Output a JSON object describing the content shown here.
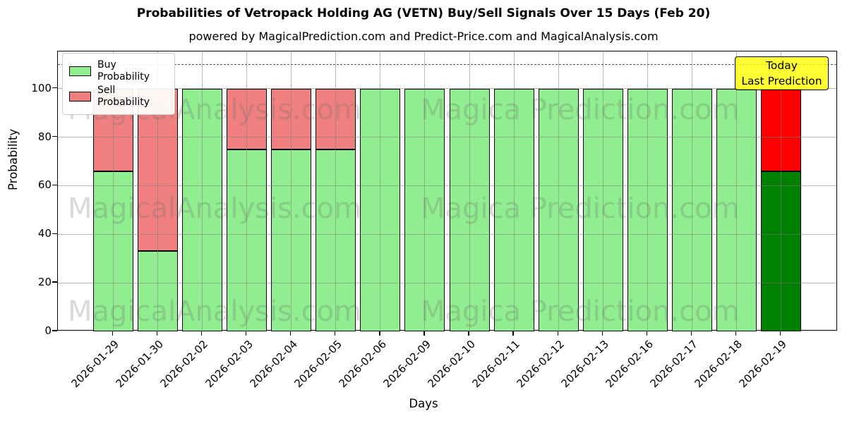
{
  "header": {
    "title": "Probabilities of Vetropack Holding AG (VETN) Buy/Sell Signals Over 15 Days (Feb 20)",
    "subtitle": "powered by MagicalPrediction.com and Predict-Price.com and MagicalAnalysis.com"
  },
  "legend": {
    "items": [
      {
        "label": "Buy Probability",
        "color": "#90EE90"
      },
      {
        "label": "Sell Probability",
        "color": "#F08080"
      }
    ]
  },
  "annotation": {
    "line1": "Today",
    "line2": "Last Prediction"
  },
  "watermarks": {
    "left": "MagicalAnalysis.com",
    "right": "Magica Prediction.com"
  },
  "chart_data": {
    "type": "bar",
    "stacked": true,
    "title": "Probabilities of Vetropack Holding AG (VETN) Buy/Sell Signals Over 15 Days (Feb 20)",
    "xlabel": "Days",
    "ylabel": "Probability",
    "categories": [
      "2026-01-29",
      "2026-01-30",
      "2026-02-02",
      "2026-02-03",
      "2026-02-04",
      "2026-02-05",
      "2026-02-06",
      "2026-02-09",
      "2026-02-10",
      "2026-02-11",
      "2026-02-12",
      "2026-02-13",
      "2026-02-16",
      "2026-02-17",
      "2026-02-18",
      "2026-02-19"
    ],
    "series": [
      {
        "name": "Buy Probability",
        "values": [
          66,
          33,
          100,
          75,
          75,
          75,
          100,
          100,
          100,
          100,
          100,
          100,
          100,
          100,
          100,
          66
        ]
      },
      {
        "name": "Sell Probability",
        "values": [
          34,
          67,
          0,
          25,
          25,
          25,
          0,
          0,
          0,
          0,
          0,
          0,
          0,
          0,
          0,
          34
        ]
      }
    ],
    "colors": {
      "buy": "#90EE90",
      "sell": "#F08080"
    },
    "last_bar_colors": {
      "buy": "#008000",
      "sell": "#FF0000"
    },
    "yticks": [
      0,
      20,
      40,
      60,
      80,
      100
    ],
    "ylim": [
      0,
      115.3
    ],
    "threshold_dashed_line": 110,
    "grid": true,
    "legend_position": "upper left"
  }
}
